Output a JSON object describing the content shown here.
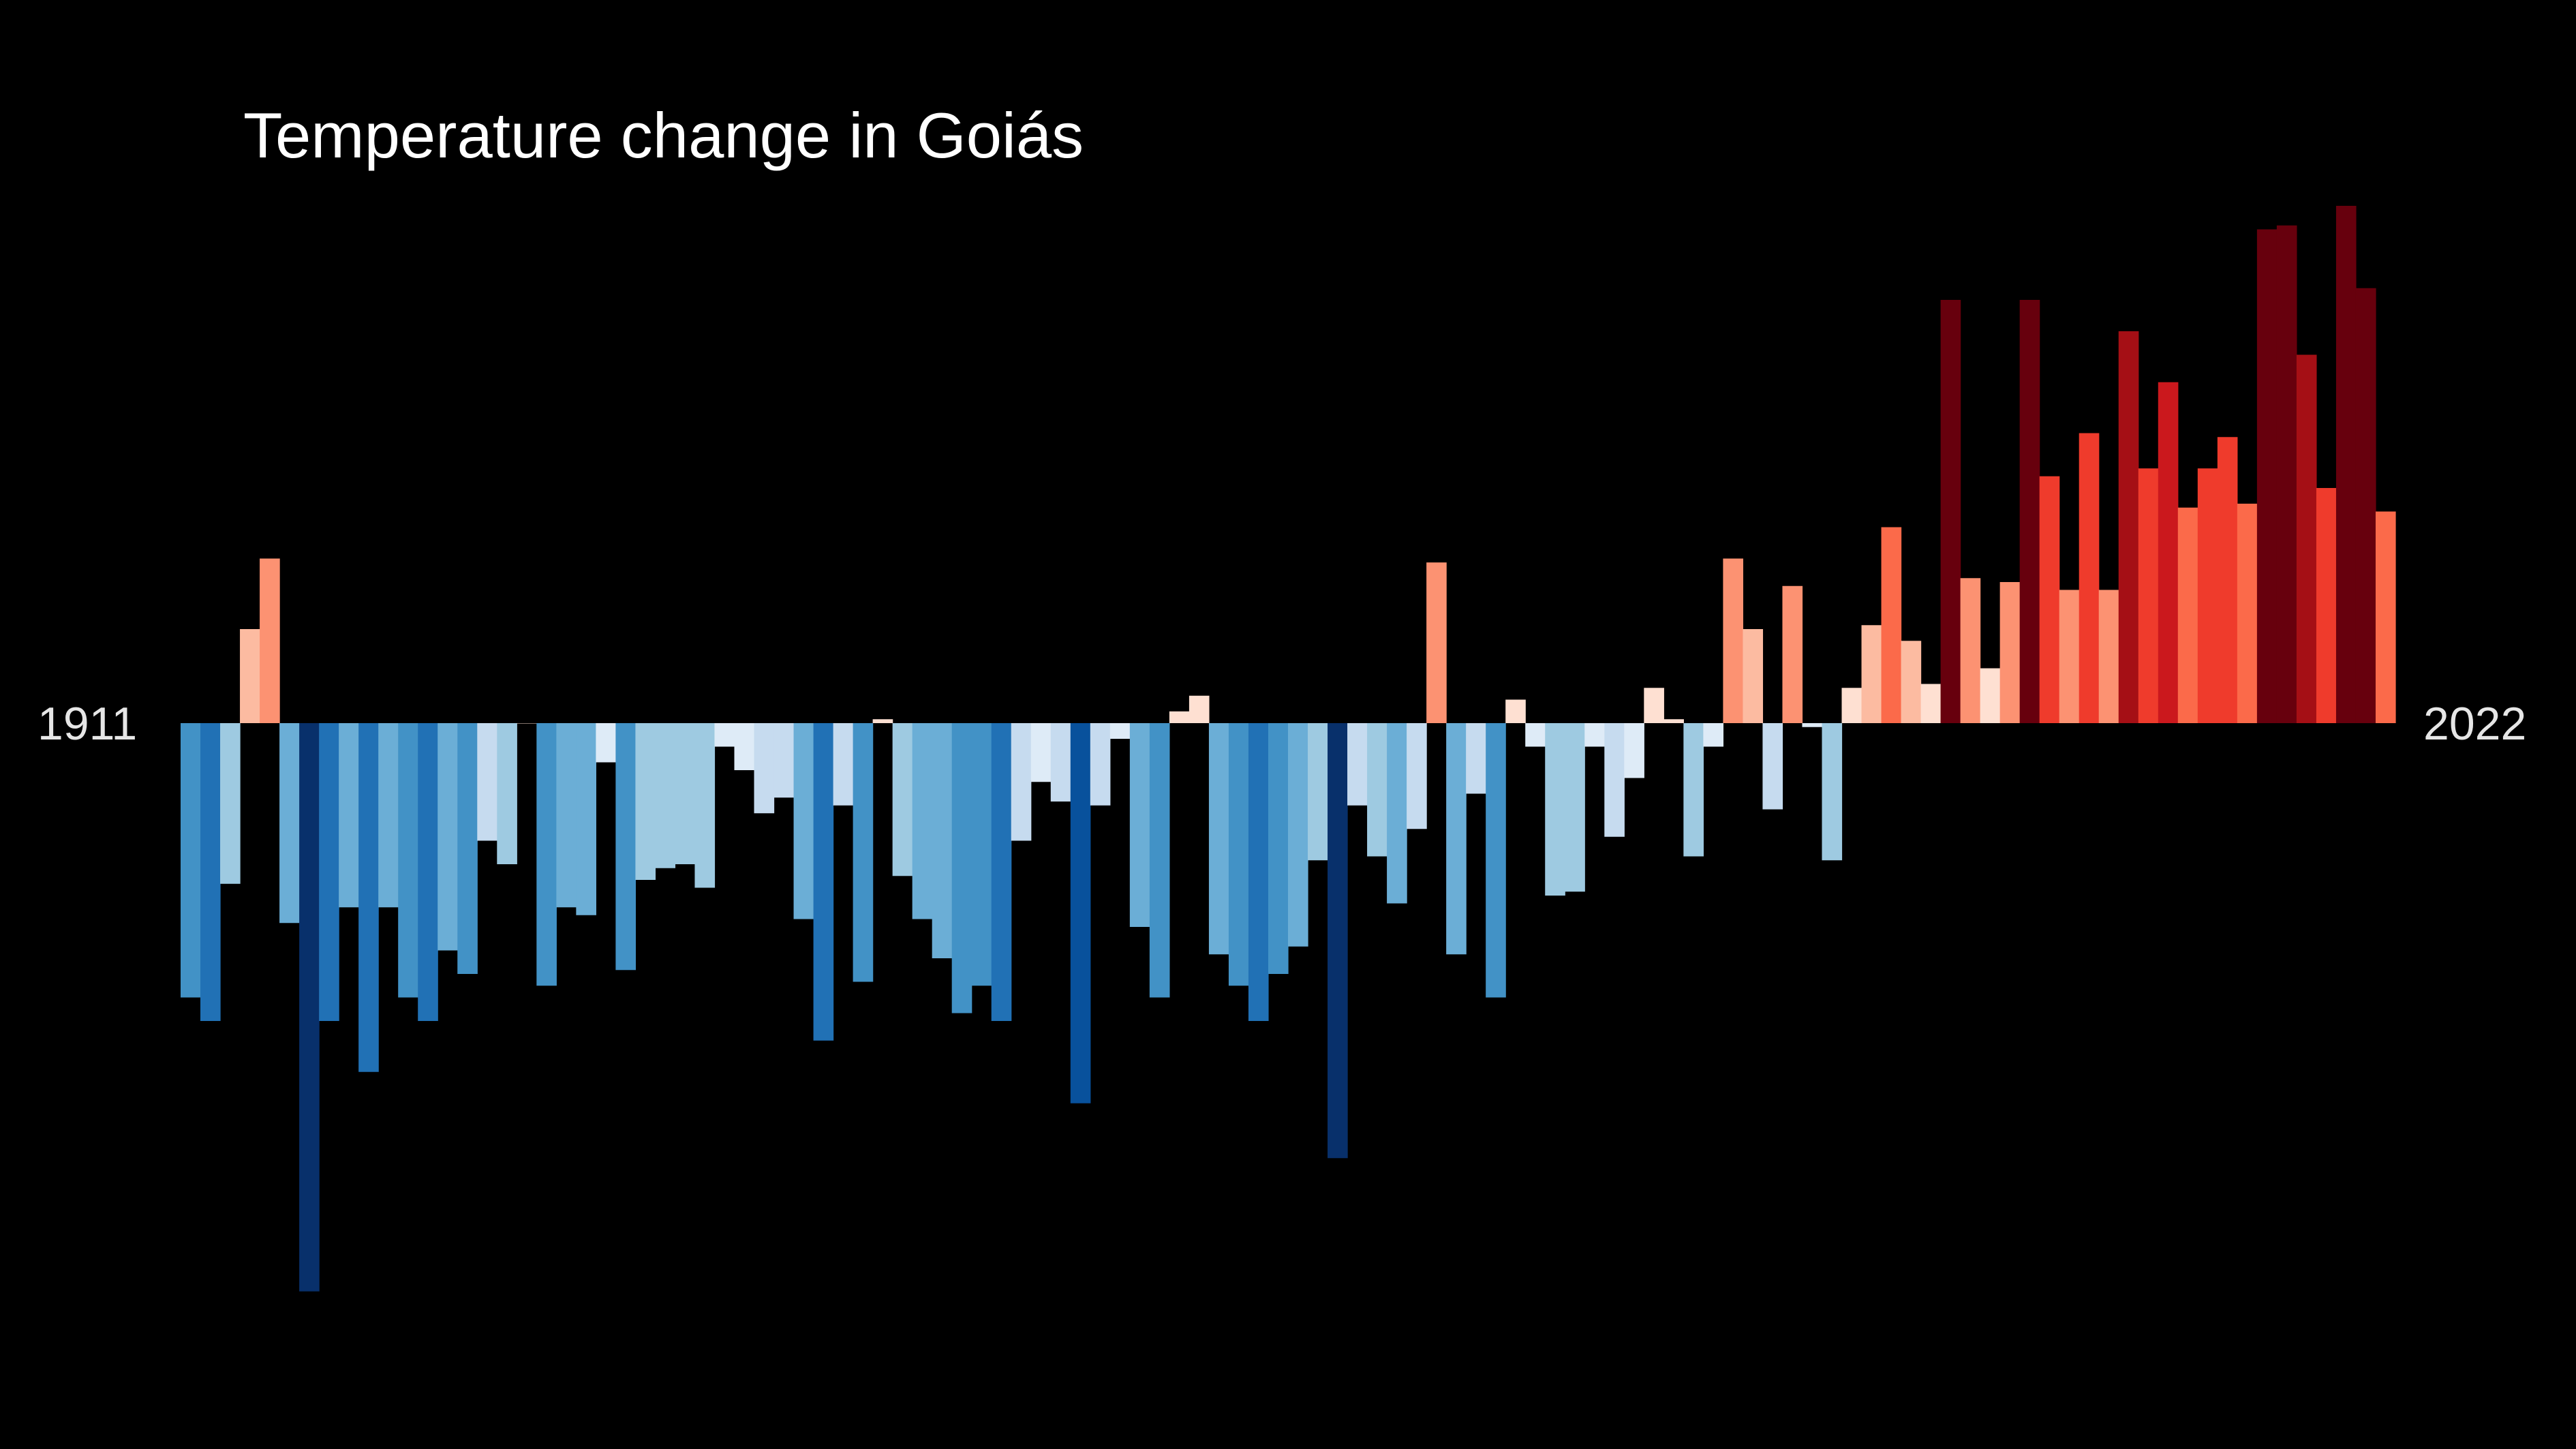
{
  "title": "Temperature change in Goiás",
  "axis": {
    "start_label": "1911",
    "end_label": "2022"
  },
  "chart_data": {
    "type": "bar",
    "title": "Temperature change in Goiás",
    "xlabel": "",
    "ylabel": "",
    "grid": false,
    "legend": "none",
    "background": "#000000",
    "first_year": 1911,
    "last_year": 2022,
    "categories": [
      1911,
      1912,
      1913,
      1914,
      1915,
      1916,
      1917,
      1918,
      1919,
      1920,
      1921,
      1922,
      1923,
      1924,
      1925,
      1926,
      1927,
      1928,
      1929,
      1930,
      1931,
      1932,
      1933,
      1934,
      1935,
      1936,
      1937,
      1938,
      1939,
      1940,
      1941,
      1942,
      1943,
      1944,
      1945,
      1946,
      1947,
      1948,
      1949,
      1950,
      1951,
      1952,
      1953,
      1954,
      1955,
      1956,
      1957,
      1958,
      1959,
      1960,
      1961,
      1962,
      1963,
      1964,
      1965,
      1966,
      1967,
      1968,
      1969,
      1970,
      1971,
      1972,
      1973,
      1974,
      1975,
      1976,
      1977,
      1978,
      1979,
      1980,
      1981,
      1982,
      1983,
      1984,
      1985,
      1986,
      1987,
      1988,
      1989,
      1990,
      1991,
      1992,
      1993,
      1994,
      1995,
      1996,
      1997,
      1998,
      1999,
      2000,
      2001,
      2002,
      2003,
      2004,
      2005,
      2006,
      2007,
      2008,
      2009,
      2010,
      2011,
      2012,
      2013,
      2014,
      2015,
      2016,
      2017,
      2018,
      2019,
      2020,
      2021,
      2022
    ],
    "values": [
      -0.7,
      -0.76,
      -0.41,
      0.24,
      0.42,
      -0.51,
      -1.45,
      -0.76,
      -0.47,
      -0.89,
      -0.47,
      -0.7,
      -0.76,
      -0.58,
      -0.64,
      -0.3,
      -0.36,
      0.0,
      -0.67,
      -0.47,
      -0.49,
      -0.1,
      -0.63,
      -0.4,
      -0.37,
      -0.36,
      -0.42,
      -0.06,
      -0.12,
      -0.23,
      -0.19,
      -0.5,
      -0.81,
      -0.21,
      -0.66,
      0.01,
      -0.39,
      -0.5,
      -0.6,
      -0.74,
      -0.67,
      -0.76,
      -0.3,
      -0.15,
      -0.2,
      -0.97,
      -0.21,
      -0.04,
      -0.52,
      -0.7,
      0.03,
      0.07,
      -0.59,
      -0.67,
      -0.76,
      -0.64,
      -0.57,
      -0.35,
      -1.11,
      -0.21,
      -0.34,
      -0.46,
      -0.27,
      0.41,
      -0.59,
      -0.18,
      -0.7,
      0.06,
      -0.06,
      -0.44,
      -0.43,
      -0.06,
      -0.29,
      -0.14,
      0.09,
      0.01,
      -0.34,
      -0.06,
      0.42,
      0.24,
      -0.22,
      0.35,
      -0.01,
      -0.35,
      0.09,
      0.25,
      0.5,
      0.21,
      0.1,
      1.08,
      0.37,
      0.14,
      0.36,
      1.08,
      0.63,
      0.34,
      0.74,
      0.34,
      1.0,
      0.65,
      0.87,
      0.55,
      0.65,
      0.73,
      0.56,
      1.26,
      1.27,
      0.94,
      0.6,
      1.32,
      1.11,
      0.54
    ],
    "ylim": [
      -1.6,
      1.5
    ],
    "color_scale": [
      "#08306b",
      "#08519c",
      "#2171b5",
      "#4292c6",
      "#6baed6",
      "#9ecae1",
      "#c6dbef",
      "#deebf7",
      "#fee0d2",
      "#fcbba1",
      "#fc9272",
      "#fb6a4a",
      "#ef3b2c",
      "#cb181d",
      "#a50f15",
      "#67000d"
    ]
  }
}
